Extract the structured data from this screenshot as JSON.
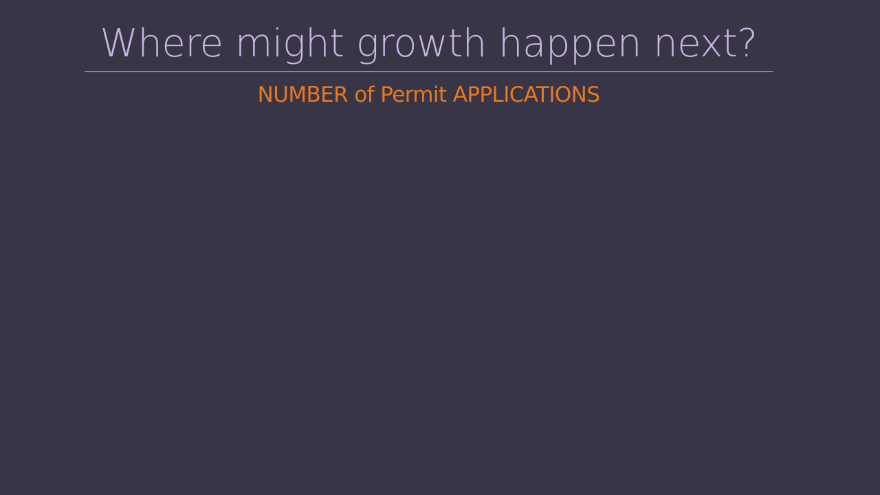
{
  "slide": {
    "title": "Where might growth happen next?",
    "subtitle": "NUMBER of Permit APPLICATIONS"
  },
  "colors": {
    "background": "#383547",
    "title": "#c9b4e3",
    "subtitle": "#e8791e",
    "divider": "#d8d8e0"
  }
}
